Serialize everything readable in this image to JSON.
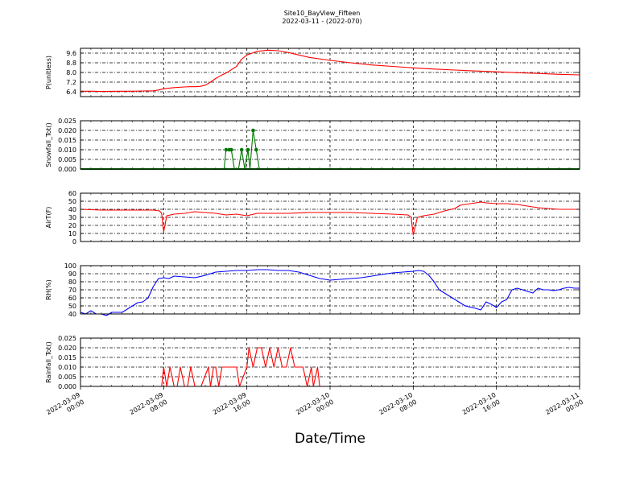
{
  "header": {
    "title": "Site10_BayView_Fifteen",
    "subtitle": "2022-03-11 - (2022-070)"
  },
  "chart_data": {
    "type": "line",
    "xlabel": "Date/Time",
    "xlim": [
      0,
      48
    ],
    "xticks": [
      {
        "x": 0,
        "line1": "2022-03-09",
        "line2": "00:00"
      },
      {
        "x": 8,
        "line1": "2022-03-09",
        "line2": "08:00"
      },
      {
        "x": 16,
        "line1": "2022-03-09",
        "line2": "16:00"
      },
      {
        "x": 24,
        "line1": "2022-03-10",
        "line2": "00:00"
      },
      {
        "x": 32,
        "line1": "2022-03-10",
        "line2": "08:00"
      },
      {
        "x": 40,
        "line1": "2022-03-10",
        "line2": "16:00"
      },
      {
        "x": 48,
        "line1": "2022-03-11",
        "line2": "00:00"
      }
    ],
    "grid": true,
    "panels": [
      {
        "name": "p",
        "ylabel": "P(unitless)",
        "color": "#ff0000",
        "ylim": [
          6.0,
          10.0
        ],
        "yticks": [
          "6.4",
          "7.2",
          "8.0",
          "8.8",
          "9.6"
        ],
        "ytick_values": [
          6.4,
          7.2,
          8.0,
          8.8,
          9.6
        ],
        "x": [
          0,
          1,
          2,
          3,
          4,
          5,
          6,
          7,
          7.5,
          8,
          9,
          10,
          10.5,
          11,
          11.5,
          12,
          12.5,
          13,
          13.5,
          14,
          15,
          15.5,
          16,
          16.5,
          17,
          18,
          18.5,
          19,
          20,
          21,
          22,
          24,
          26,
          28,
          30,
          32,
          34,
          36,
          38,
          40,
          42,
          44,
          46,
          48
        ],
        "y": [
          6.45,
          6.45,
          6.43,
          6.44,
          6.45,
          6.45,
          6.47,
          6.48,
          6.55,
          6.65,
          6.75,
          6.8,
          6.82,
          6.82,
          6.85,
          6.95,
          7.2,
          7.5,
          7.75,
          7.95,
          8.5,
          9.1,
          9.45,
          9.6,
          9.75,
          9.85,
          9.82,
          9.8,
          9.65,
          9.45,
          9.25,
          9.0,
          8.8,
          8.62,
          8.5,
          8.38,
          8.28,
          8.2,
          8.12,
          8.05,
          7.98,
          7.92,
          7.85,
          7.8
        ]
      },
      {
        "name": "snow",
        "ylabel": "Snowfall_Tot()",
        "color": "#007700",
        "ylim": [
          0,
          0.025
        ],
        "yticks": [
          "0.000",
          "0.005",
          "0.010",
          "0.015",
          "0.020",
          "0.025"
        ],
        "ytick_values": [
          0,
          0.005,
          0.01,
          0.015,
          0.02,
          0.025
        ],
        "markers": true,
        "x": [
          0,
          13.8,
          14,
          14.3,
          14.5,
          14.8,
          15.2,
          15.5,
          15.8,
          16.1,
          16.3,
          16.6,
          16.9,
          17.2,
          48
        ],
        "y": [
          0,
          0,
          0.01,
          0.01,
          0.01,
          0,
          0,
          0.01,
          0,
          0.01,
          0,
          0.02,
          0.01,
          0,
          0
        ]
      },
      {
        "name": "airt",
        "ylabel": "AirT(F)",
        "color": "#ff0000",
        "ylim": [
          0,
          60
        ],
        "yticks": [
          "0",
          "10",
          "20",
          "30",
          "40",
          "50",
          "60"
        ],
        "ytick_values": [
          0,
          10,
          20,
          30,
          40,
          50,
          60
        ],
        "x": [
          0,
          2,
          4,
          6,
          7,
          7.6,
          7.8,
          8.0,
          8.3,
          9,
          10,
          10.5,
          11,
          12,
          13,
          14,
          15,
          16,
          17,
          18,
          20,
          22,
          24,
          26,
          28,
          30,
          31.5,
          31.8,
          32.0,
          32.4,
          33,
          34,
          35,
          36,
          36.5,
          37,
          38,
          38.5,
          39,
          40,
          41,
          42,
          43,
          44,
          45,
          46,
          47,
          48
        ],
        "y": [
          40,
          39,
          39,
          39,
          39,
          38,
          35,
          12,
          32,
          34,
          35,
          36,
          37,
          36,
          35,
          33,
          34,
          32,
          35,
          35,
          35,
          36,
          36,
          36,
          35,
          34,
          33,
          30,
          8,
          30,
          32,
          34,
          38,
          41,
          45,
          46,
          48,
          49,
          48,
          47,
          47,
          46,
          44,
          42,
          41,
          40,
          40,
          40
        ]
      },
      {
        "name": "rh",
        "ylabel": "RH(%)",
        "color": "#0000ff",
        "ylim": [
          40,
          100
        ],
        "yticks": [
          "40",
          "50",
          "60",
          "70",
          "80",
          "90",
          "100"
        ],
        "ytick_values": [
          40,
          50,
          60,
          70,
          80,
          90,
          100
        ],
        "x": [
          0,
          0.5,
          1,
          1.5,
          2,
          2.5,
          3,
          4,
          5,
          5.5,
          6,
          6.5,
          7,
          7.5,
          8,
          8.5,
          9,
          10,
          11,
          12,
          13,
          14,
          15,
          16,
          17,
          18,
          19,
          20,
          21,
          22,
          23,
          24,
          25,
          26,
          27,
          28,
          29,
          30,
          31,
          32,
          32.5,
          33,
          33.5,
          34,
          34.5,
          35,
          36,
          37,
          38,
          38.5,
          39,
          39.5,
          40,
          40.5,
          41,
          41.5,
          42,
          42.5,
          43,
          43.5,
          44,
          44.5,
          45,
          45.5,
          46,
          46.5,
          47,
          47.5,
          48
        ],
        "y": [
          42,
          40,
          44,
          40,
          40,
          38,
          42,
          42,
          50,
          54,
          55,
          60,
          74,
          84,
          85,
          84,
          87,
          86,
          85,
          88,
          92,
          93,
          94,
          94,
          95,
          95,
          94,
          94,
          92,
          88,
          84,
          82,
          83,
          84,
          85,
          87,
          89,
          91,
          92,
          93,
          94,
          93,
          88,
          80,
          70,
          66,
          58,
          50,
          47,
          45,
          55,
          52,
          48,
          55,
          58,
          70,
          72,
          70,
          68,
          66,
          72,
          70,
          70,
          69,
          70,
          72,
          73,
          72,
          72
        ]
      },
      {
        "name": "rain",
        "ylabel": "Rainfall_Tot()",
        "color": "#ff0000",
        "ylim": [
          0,
          0.025
        ],
        "yticks": [
          "0.000",
          "0.005",
          "0.010",
          "0.015",
          "0.020",
          "0.025"
        ],
        "ytick_values": [
          0,
          0.005,
          0.01,
          0.015,
          0.02,
          0.025
        ],
        "x": [
          0,
          7.8,
          8.0,
          8.3,
          8.6,
          9.0,
          9.3,
          9.6,
          10.0,
          10.3,
          10.6,
          11.0,
          11.3,
          11.6,
          12.3,
          12.5,
          12.8,
          13.0,
          13.3,
          13.6,
          13.8,
          14.0,
          15.0,
          15.3,
          16.0,
          16.2,
          16.6,
          17.0,
          17.4,
          17.8,
          18.2,
          18.6,
          19.0,
          19.4,
          19.8,
          20.2,
          20.6,
          21.0,
          21.4,
          21.8,
          22.2,
          22.4,
          22.8,
          23.0,
          23.3,
          48
        ],
        "y": [
          0,
          0,
          0.01,
          0,
          0.01,
          0,
          0,
          0.01,
          0,
          0,
          0.01,
          0,
          0,
          0,
          0.01,
          0,
          0.01,
          0.01,
          0,
          0.01,
          0.01,
          0.01,
          0.01,
          0,
          0.01,
          0.02,
          0.01,
          0.02,
          0.02,
          0.01,
          0.02,
          0.01,
          0.02,
          0.01,
          0.01,
          0.02,
          0.01,
          0.01,
          0.01,
          0,
          0.01,
          0,
          0.01,
          0,
          0,
          0
        ]
      }
    ]
  }
}
